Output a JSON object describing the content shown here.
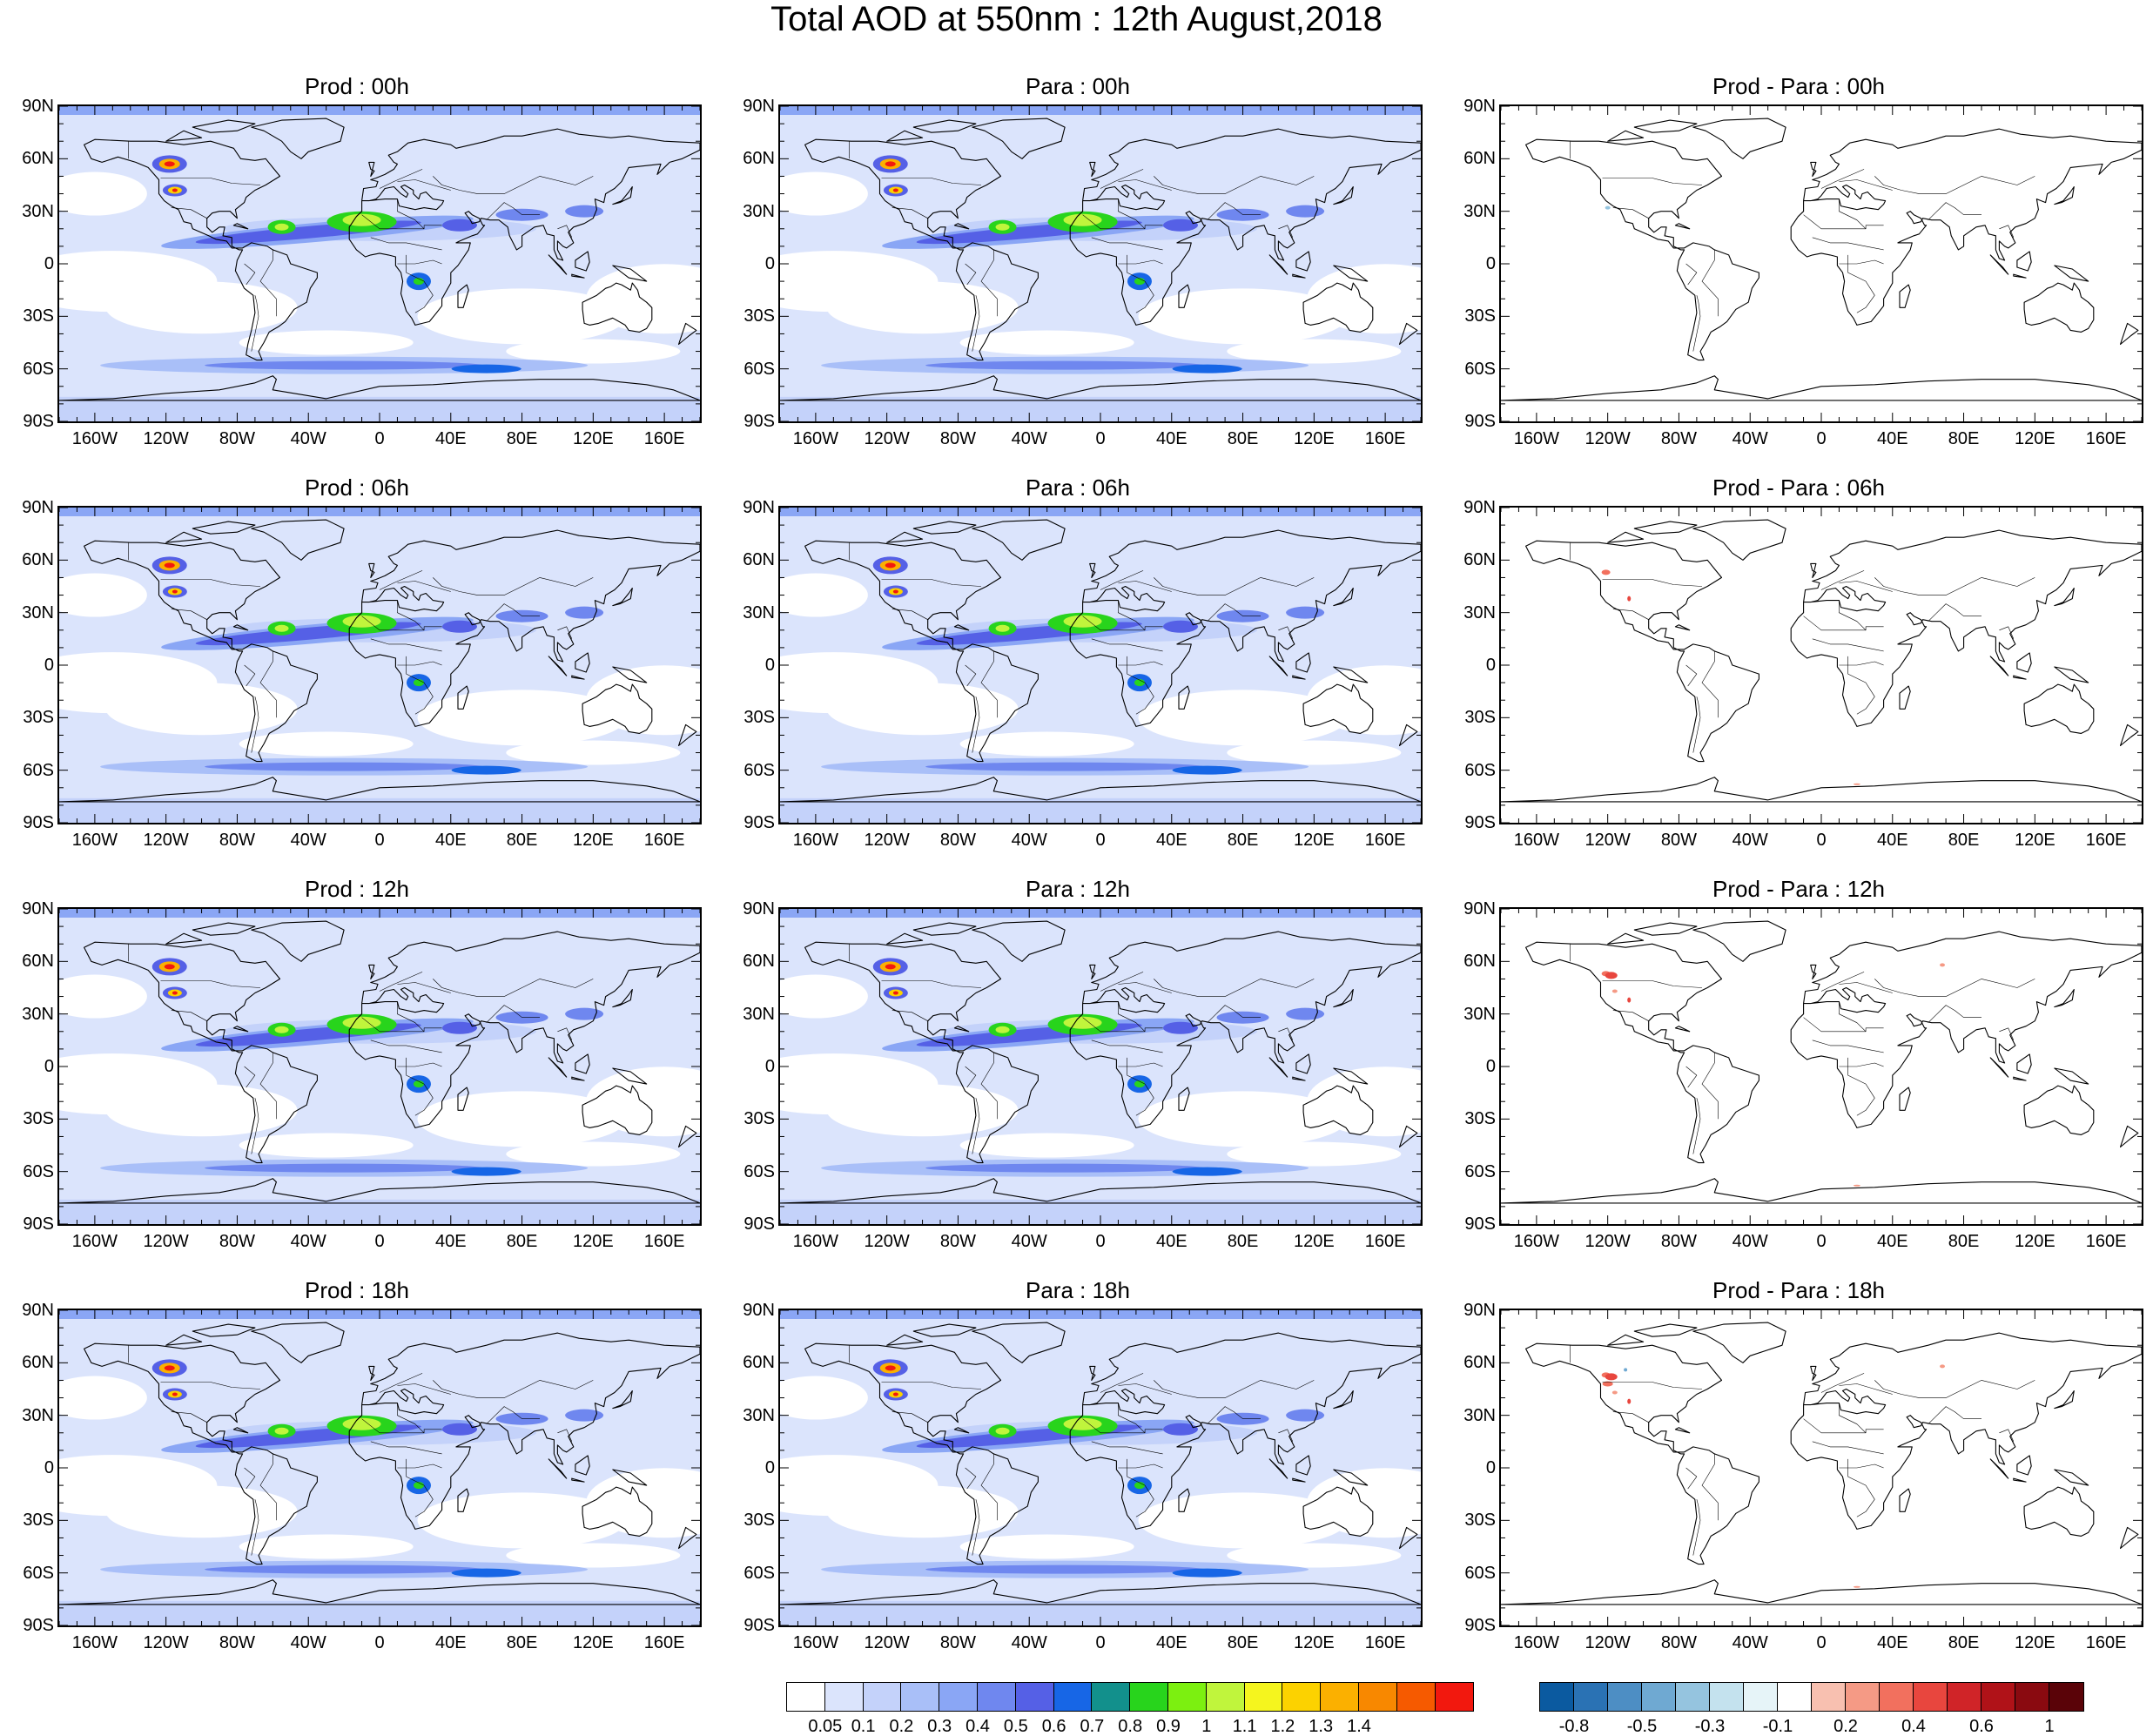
{
  "title": "Total AOD at 550nm : 12th August,2018",
  "lat_labels": [
    "90N",
    "60N",
    "30N",
    "0",
    "30S",
    "60S",
    "90S"
  ],
  "lon_labels": [
    "160W",
    "120W",
    "80W",
    "40W",
    "0",
    "40E",
    "80E",
    "120E",
    "160E"
  ],
  "panels": [
    {
      "title": "Prod : 00h",
      "kind": "aod",
      "hour": "00h"
    },
    {
      "title": "Para : 00h",
      "kind": "aod",
      "hour": "00h"
    },
    {
      "title": "Prod - Para : 00h",
      "kind": "diff",
      "hour": "00h"
    },
    {
      "title": "Prod : 06h",
      "kind": "aod",
      "hour": "06h"
    },
    {
      "title": "Para : 06h",
      "kind": "aod",
      "hour": "06h"
    },
    {
      "title": "Prod - Para : 06h",
      "kind": "diff",
      "hour": "06h"
    },
    {
      "title": "Prod : 12h",
      "kind": "aod",
      "hour": "12h"
    },
    {
      "title": "Para : 12h",
      "kind": "aod",
      "hour": "12h"
    },
    {
      "title": "Prod - Para : 12h",
      "kind": "diff",
      "hour": "12h"
    },
    {
      "title": "Prod : 18h",
      "kind": "aod",
      "hour": "18h"
    },
    {
      "title": "Para : 18h",
      "kind": "aod",
      "hour": "18h"
    },
    {
      "title": "Prod - Para : 18h",
      "kind": "diff",
      "hour": "18h"
    }
  ],
  "aod_colorbar": {
    "labels": [
      "0.05",
      "0.1",
      "0.2",
      "0.3",
      "0.4",
      "0.5",
      "0.6",
      "0.7",
      "0.8",
      "0.9",
      "1",
      "1.1",
      "1.2",
      "1.3",
      "1.4"
    ],
    "colors": [
      "#ffffff",
      "#dbe4fc",
      "#c4d2fa",
      "#a9bff8",
      "#8aa6f5",
      "#6f87ef",
      "#5560e6",
      "#1766e6",
      "#12908c",
      "#28d41c",
      "#7cf010",
      "#c0f53c",
      "#f5f51e",
      "#fcd200",
      "#fbb000",
      "#f88800",
      "#f65a00",
      "#f2180e"
    ]
  },
  "diff_colorbar": {
    "labels": [
      "-0.8",
      "-0.5",
      "-0.3",
      "-0.1",
      "0.2",
      "0.4",
      "0.6",
      "1"
    ],
    "colors": [
      "#0b5aa0",
      "#2a72b4",
      "#4d8ec4",
      "#6fa9d2",
      "#95c4df",
      "#c4e2ee",
      "#e6f4f8",
      "#ffffff",
      "#f8c0b0",
      "#f59a85",
      "#f2705e",
      "#e8463e",
      "#d02428",
      "#b01218",
      "#8a0a10",
      "#5a0308"
    ]
  }
}
